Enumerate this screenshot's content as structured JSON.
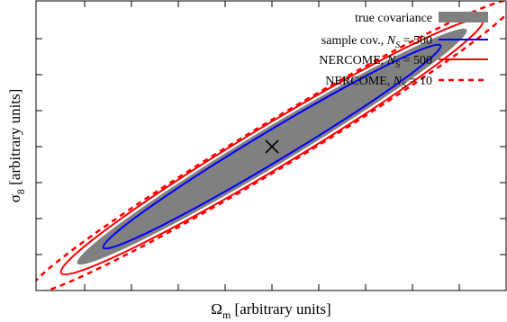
{
  "chart_data": {
    "type": "scatter",
    "title": "",
    "xlabel": {
      "main": "Ω",
      "sub": "m",
      "rest": " [arbitrary units]"
    },
    "ylabel": {
      "main": "σ",
      "sub": "8",
      "rest": " [arbitrary units]"
    },
    "xlim": [
      -1.0,
      1.0
    ],
    "ylim": [
      -1.0,
      1.0
    ],
    "grid": false,
    "legend_position": "top-right",
    "center": {
      "x": 0.0,
      "y": 0.0,
      "marker": "×"
    },
    "series": [
      {
        "name": "true covariance",
        "legend": {
          "text": "true covariance"
        },
        "style": "filled",
        "color": "#808080",
        "ellipse": {
          "cx": 0.0,
          "cy": 0.0,
          "a": 0.97,
          "b": 0.13,
          "angle_deg": -31
        }
      },
      {
        "name": "sample cov., N_S = 500",
        "legend": {
          "text": "sample cov., ",
          "N": "N",
          "S": "S",
          "eq": " = 500"
        },
        "style": "solid",
        "color": "#0000ff",
        "ellipse": {
          "cx": 0.0,
          "cy": 0.0,
          "a": 0.84,
          "b": 0.105,
          "angle_deg": -31
        }
      },
      {
        "name": "NERCOME, N_S = 500",
        "legend": {
          "text": "NERCOME, ",
          "N": "N",
          "S": "S",
          "eq": " = 500"
        },
        "style": "solid",
        "color": "#ff0000",
        "ellipse": {
          "cx": 0.0,
          "cy": 0.0,
          "a": 1.05,
          "b": 0.15,
          "angle_deg": -31
        }
      },
      {
        "name": "NERCOME, N_S = 10",
        "legend": {
          "text": "NERCOME, ",
          "N": "N",
          "S": "S",
          "eq": " = 10"
        },
        "style": "dashed",
        "color": "#ff0000",
        "ellipse": {
          "cx": 0.0,
          "cy": 0.0,
          "a": 1.21,
          "b": 0.16,
          "angle_deg": -31
        }
      }
    ]
  }
}
